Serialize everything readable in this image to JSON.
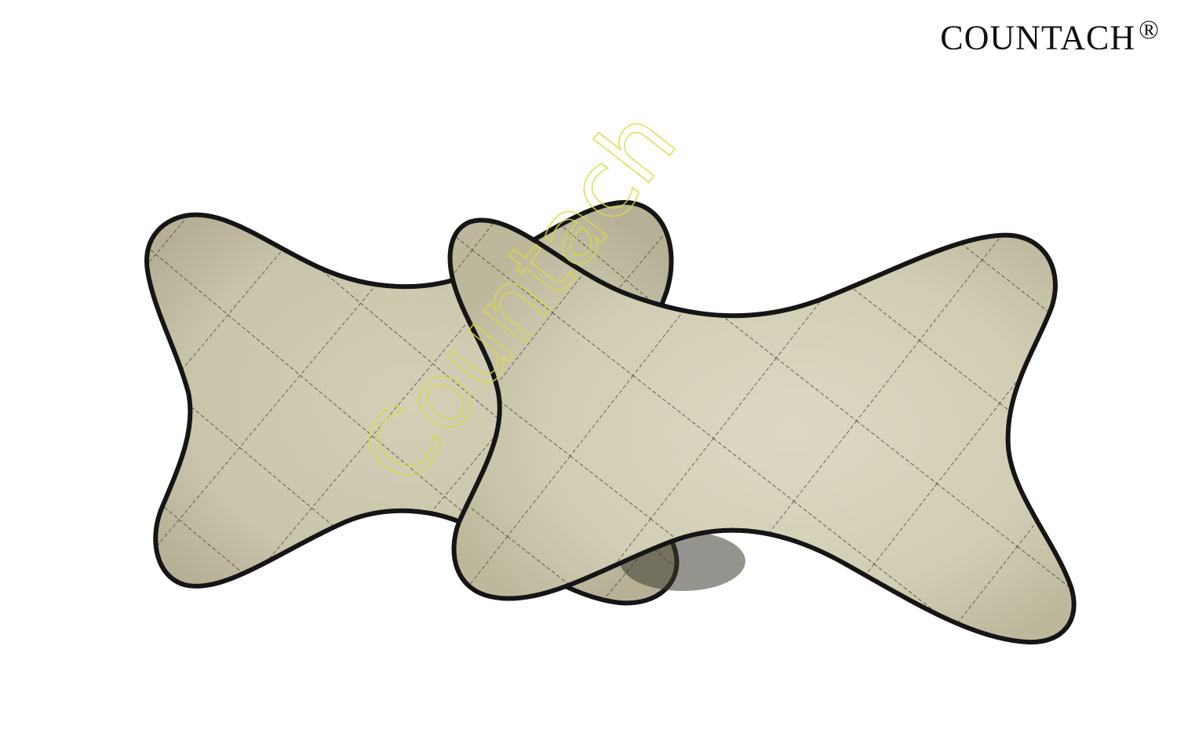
{
  "brand": {
    "name": "COUNTACH",
    "registered_mark": "®"
  },
  "watermark": {
    "text": "Countach",
    "color": "#d8dc3e"
  },
  "product": {
    "items": [
      {
        "label": "back-pillow",
        "color": "#cfcbb2"
      },
      {
        "label": "front-pillow",
        "color": "#d6d2bb"
      }
    ],
    "piping_color": "#151515",
    "stitch_color": "#3a3528"
  }
}
